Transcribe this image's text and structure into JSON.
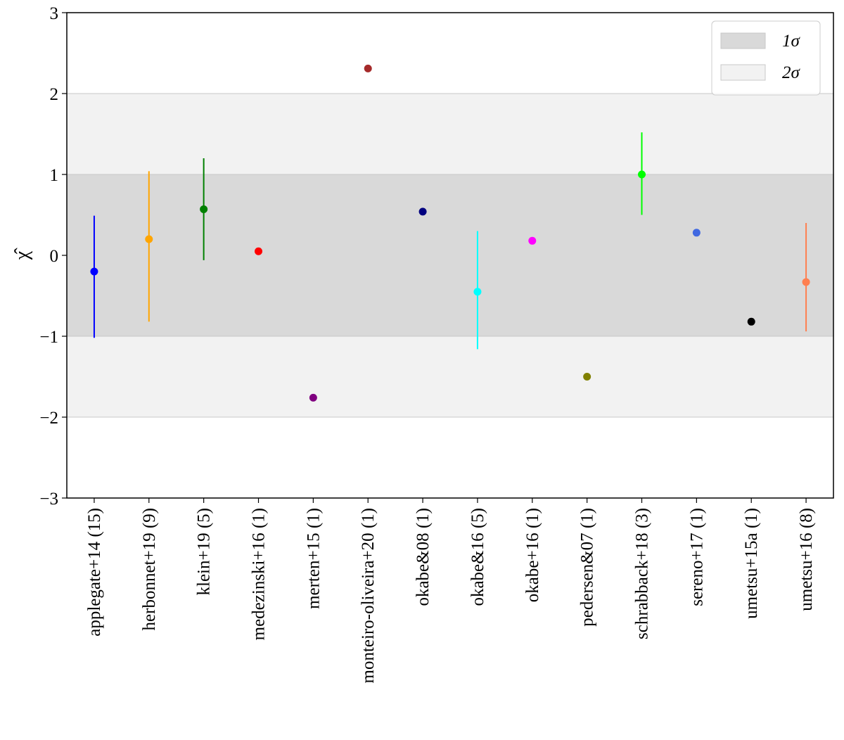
{
  "chart_data": {
    "type": "errorbar",
    "ylabel": "χ̂",
    "categories": [
      "applegate+14 (15)",
      "herbonnet+19 (9)",
      "klein+19 (5)",
      "medezinski+16 (1)",
      "merten+15 (1)",
      "monteiro-oliveira+20 (1)",
      "okabe&08 (1)",
      "okabe&16 (5)",
      "okabe+16 (1)",
      "pedersen&07 (1)",
      "schrabback+18 (3)",
      "sereno+17 (1)",
      "umetsu+15a (1)",
      "umetsu+16 (8)"
    ],
    "values": [
      -0.2,
      0.2,
      0.57,
      0.05,
      -1.76,
      2.31,
      0.54,
      -0.45,
      0.18,
      -1.5,
      1.0,
      0.28,
      -0.82,
      -0.33
    ],
    "err_minus": [
      0.82,
      1.02,
      0.63,
      null,
      null,
      null,
      null,
      0.71,
      null,
      null,
      0.5,
      null,
      null,
      0.61
    ],
    "err_plus": [
      0.69,
      0.84,
      0.63,
      null,
      null,
      null,
      null,
      0.75,
      null,
      null,
      0.52,
      null,
      null,
      0.73
    ],
    "colors": [
      "#0000ff",
      "#ffa500",
      "#008000",
      "#ff0000",
      "#800080",
      "#a52a2a",
      "#000080",
      "#00ffff",
      "#ff00ff",
      "#808000",
      "#00ff00",
      "#4169e1",
      "#000000",
      "#ff7f50"
    ],
    "bands": [
      {
        "name": "1σ",
        "range": [
          -1,
          1
        ],
        "color": "#d9d9d9"
      },
      {
        "name": "2σ",
        "range": [
          -2,
          2
        ],
        "color": "#f2f2f2"
      }
    ],
    "legend": "upper right",
    "ylim": [
      -3,
      3
    ],
    "yticks": [
      {
        "value": -3,
        "label": "−3"
      },
      {
        "value": -2,
        "label": "−2"
      },
      {
        "value": -1,
        "label": "−1"
      },
      0,
      1,
      2,
      3
    ]
  }
}
